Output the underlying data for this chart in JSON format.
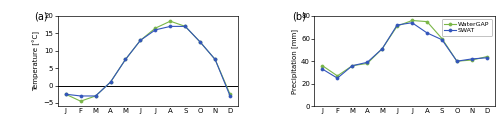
{
  "months": [
    "J",
    "F",
    "M",
    "A",
    "M",
    "J",
    "J",
    "A",
    "S",
    "O",
    "N",
    "D"
  ],
  "temp_watergap": [
    -2.5,
    -4.5,
    -3.0,
    1.0,
    7.5,
    13.0,
    16.5,
    18.5,
    17.0,
    12.5,
    7.5,
    -2.5
  ],
  "temp_swat": [
    -2.5,
    -3.0,
    -3.0,
    1.0,
    7.5,
    13.0,
    16.0,
    17.0,
    17.0,
    12.5,
    7.5,
    -3.0
  ],
  "prec_watergap": [
    36,
    27,
    36,
    38,
    51,
    71,
    76,
    75,
    60,
    40,
    41,
    44
  ],
  "prec_swat": [
    33,
    25,
    36,
    39,
    51,
    72,
    74,
    65,
    59,
    40,
    42,
    43
  ],
  "color_watergap": "#7ab648",
  "color_swat": "#3355bb",
  "temp_ylim": [
    -6,
    20
  ],
  "temp_yticks": [
    -5,
    0,
    5,
    10,
    15,
    20
  ],
  "prec_ylim": [
    0,
    80
  ],
  "prec_yticks": [
    0,
    20,
    40,
    60,
    80
  ],
  "temp_ylabel": "Temperature [°C]",
  "prec_ylabel": "Precipitation [mm]",
  "label_watergap": "WaterGAP",
  "label_swat": "SWAT",
  "panel_a": "(a)",
  "panel_b": "(b)"
}
